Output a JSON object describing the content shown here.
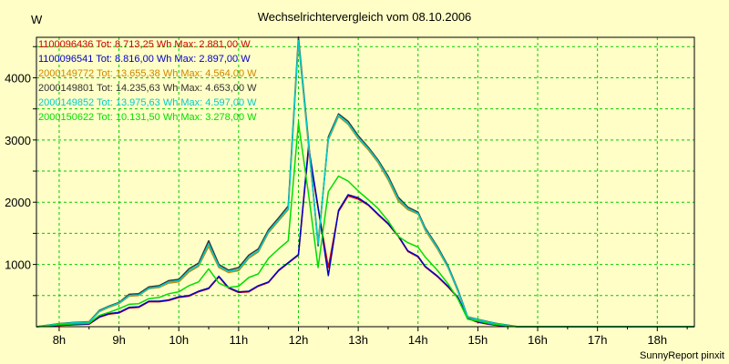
{
  "chart_data": {
    "type": "line",
    "title": "Wechselrichtervergleich vom 08.10.2006",
    "y_unit_label": "W",
    "x_ticks": [
      "8h",
      "9h",
      "10h",
      "11h",
      "12h",
      "13h",
      "14h",
      "15h",
      "16h",
      "17h",
      "18h"
    ],
    "y_ticks": [
      "1000",
      "2000",
      "3000",
      "4000"
    ],
    "xlim": [
      7.62,
      18.62
    ],
    "ylim": [
      0,
      4650
    ],
    "grid": true,
    "legend_position": "top-left",
    "colors": {
      "background": "#fefec6",
      "plot_background": "#fefec6",
      "grid": "#00cc00",
      "axis": "#000000"
    },
    "x": [
      7.62,
      8.0,
      8.25,
      8.5,
      8.67,
      8.83,
      9.0,
      9.17,
      9.33,
      9.5,
      9.67,
      9.83,
      10.0,
      10.17,
      10.33,
      10.5,
      10.67,
      10.83,
      11.0,
      11.17,
      11.33,
      11.5,
      11.67,
      11.83,
      12.0,
      12.17,
      12.33,
      12.5,
      12.67,
      12.83,
      13.0,
      13.17,
      13.33,
      13.5,
      13.67,
      13.83,
      14.0,
      14.12,
      14.33,
      14.5,
      14.67,
      14.83,
      15.0,
      15.17,
      15.33,
      15.5,
      15.67,
      15.83,
      16.0,
      16.17,
      16.33,
      16.5,
      16.67,
      16.83,
      17.0,
      17.17,
      17.33,
      17.5,
      17.67,
      17.83,
      18.0,
      18.17,
      18.33,
      18.62
    ],
    "series": [
      {
        "name": "1100096436 Tot: 8.713,25 Wh Max: 2.881,00 W",
        "color": "#cc0000",
        "width": 1.5,
        "values": [
          0,
          20,
          30,
          40,
          150,
          200,
          220,
          300,
          310,
          400,
          400,
          420,
          470,
          490,
          560,
          610,
          800,
          620,
          550,
          560,
          650,
          710,
          900,
          1020,
          1150,
          2850,
          1900,
          950,
          1850,
          2100,
          2050,
          1950,
          1800,
          1650,
          1450,
          1210,
          1120,
          960,
          800,
          640,
          460,
          130,
          70,
          40,
          20,
          10,
          0,
          0,
          0,
          0,
          0,
          0,
          0,
          0,
          0,
          0,
          0,
          0,
          0,
          0,
          0,
          0,
          0,
          0
        ]
      },
      {
        "name": "1100096541 Tot: 8.816,00 Wh Max: 2.897,00 W",
        "color": "#0000cc",
        "width": 1.5,
        "values": [
          0,
          25,
          35,
          45,
          160,
          210,
          230,
          310,
          320,
          410,
          410,
          430,
          480,
          500,
          570,
          620,
          810,
          630,
          560,
          570,
          660,
          720,
          910,
          1030,
          1160,
          2897,
          1920,
          820,
          1870,
          2120,
          2070,
          1960,
          1810,
          1660,
          1460,
          1220,
          1130,
          970,
          810,
          650,
          470,
          140,
          80,
          45,
          25,
          12,
          0,
          0,
          0,
          0,
          0,
          0,
          0,
          0,
          0,
          0,
          0,
          0,
          0,
          0,
          0,
          0,
          0,
          0
        ]
      },
      {
        "name": "2000149772 Tot: 13.655,38 Wh Max: 4.564,00 W",
        "color": "#cc8800",
        "width": 1.5,
        "values": [
          0,
          40,
          60,
          70,
          240,
          310,
          370,
          490,
          500,
          610,
          630,
          700,
          720,
          880,
          970,
          1290,
          950,
          870,
          900,
          1100,
          1200,
          1510,
          1700,
          1880,
          4564,
          2900,
          1360,
          3000,
          3380,
          3250,
          3020,
          2840,
          2640,
          2360,
          2020,
          1880,
          1810,
          1550,
          1240,
          950,
          560,
          150,
          110,
          70,
          40,
          20,
          0,
          0,
          0,
          0,
          0,
          0,
          0,
          0,
          0,
          0,
          0,
          0,
          0,
          0,
          0,
          0,
          0,
          0
        ]
      },
      {
        "name": "2000149801 Tot: 14.235,63 Wh Max: 4.653,00 W",
        "color": "#333333",
        "width": 1.5,
        "values": [
          0,
          50,
          70,
          80,
          260,
          330,
          390,
          520,
          530,
          640,
          660,
          740,
          760,
          930,
          1020,
          1380,
          1000,
          910,
          950,
          1150,
          1250,
          1560,
          1750,
          1940,
          4653,
          2980,
          1300,
          3050,
          3420,
          3300,
          3070,
          2880,
          2680,
          2420,
          2080,
          1920,
          1840,
          1590,
          1280,
          980,
          590,
          160,
          120,
          80,
          50,
          25,
          0,
          0,
          0,
          0,
          0,
          0,
          0,
          0,
          0,
          0,
          0,
          0,
          0,
          0,
          0,
          0,
          0,
          0
        ]
      },
      {
        "name": "2000149852 Tot: 13.975,63 Wh Max: 4.597,00 W",
        "color": "#00cccc",
        "width": 1.5,
        "values": [
          0,
          45,
          65,
          75,
          250,
          320,
          380,
          500,
          510,
          620,
          640,
          720,
          740,
          900,
          990,
          1330,
          970,
          890,
          920,
          1120,
          1220,
          1530,
          1720,
          1900,
          4597,
          2940,
          1330,
          3020,
          3400,
          3270,
          3040,
          2860,
          2660,
          2390,
          2050,
          1900,
          1820,
          1570,
          1260,
          960,
          575,
          155,
          115,
          75,
          45,
          22,
          0,
          0,
          0,
          0,
          0,
          0,
          0,
          0,
          0,
          0,
          0,
          0,
          0,
          0,
          0,
          0,
          0,
          0
        ]
      },
      {
        "name": "2000150622 Tot: 10.131,50 Wh Max: 3.278,00 W",
        "color": "#00dd00",
        "width": 1.5,
        "values": [
          0,
          30,
          45,
          55,
          180,
          230,
          290,
          360,
          370,
          450,
          470,
          530,
          560,
          660,
          720,
          930,
          700,
          630,
          650,
          790,
          850,
          1100,
          1250,
          1380,
          3278,
          2130,
          950,
          2170,
          2420,
          2340,
          2180,
          2040,
          1900,
          1700,
          1450,
          1350,
          1280,
          1120,
          900,
          690,
          440,
          120,
          90,
          55,
          30,
          15,
          0,
          0,
          0,
          0,
          0,
          0,
          0,
          0,
          0,
          0,
          0,
          0,
          0,
          0,
          0,
          0,
          0,
          0
        ]
      }
    ]
  },
  "footer": "SunnyReport pinxit"
}
